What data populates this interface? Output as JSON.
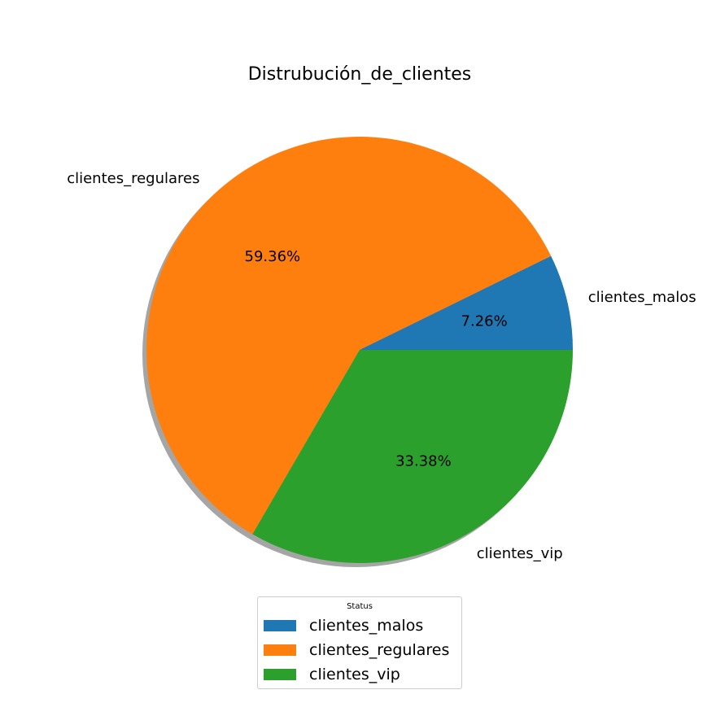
{
  "chart_data": {
    "type": "pie",
    "title": "Distrubución_de_clientes",
    "categories": [
      "clientes_malos",
      "clientes_regulares",
      "clientes_vip"
    ],
    "values": [
      7.26,
      59.36,
      33.38
    ],
    "value_labels": [
      "7.26%",
      "59.36%",
      "33.38%"
    ],
    "colors": [
      "#1f77b4",
      "#ff7f0e",
      "#2ca02c"
    ],
    "shadow": true,
    "start_angle_deg": 0,
    "direction": "counterclockwise",
    "legend": {
      "title": "Status",
      "placement": "bottom-center",
      "items": [
        "clientes_malos",
        "clientes_regulares",
        "clientes_vip"
      ]
    }
  }
}
